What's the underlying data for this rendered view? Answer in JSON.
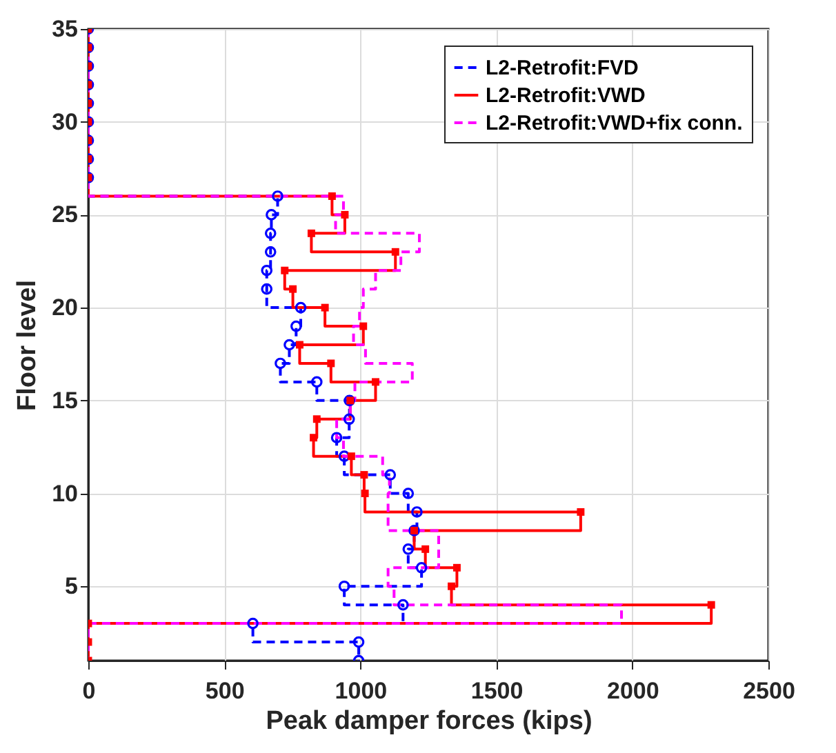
{
  "chart_data": {
    "type": "step",
    "orientation": "horizontal",
    "xlabel": "Peak damper forces (kips)",
    "ylabel": "Floor level",
    "x": [
      1,
      2,
      3,
      4,
      5,
      6,
      7,
      8,
      9,
      10,
      11,
      12,
      13,
      14,
      15,
      16,
      17,
      18,
      19,
      20,
      21,
      22,
      23,
      24,
      25,
      26,
      27,
      28,
      29,
      30,
      31,
      32,
      33,
      34,
      35
    ],
    "series": [
      {
        "name": "L2-Retrofit:FVD",
        "color": "#0000ff",
        "marker": "circle",
        "line_style": "dashed",
        "values": [
          994,
          994,
          605,
          1157,
          941,
          1225,
          1176,
          1198,
          1208,
          1176,
          1110,
          941,
          913,
          959,
          960,
          840,
          706,
          739,
          764,
          781,
          656,
          656,
          670,
          670,
          673,
          696,
          0,
          0,
          0,
          0,
          0,
          0,
          0,
          0,
          0
        ]
      },
      {
        "name": "L2-Retrofit:VWD",
        "color": "#ff0000",
        "marker": "square",
        "line_style": "solid",
        "values": [
          0,
          0,
          0,
          2290,
          1335,
          1355,
          1239,
          1198,
          1810,
          1017,
          1014,
          967,
          828,
          840,
          963,
          1056,
          892,
          777,
          1011,
          870,
          752,
          722,
          1129,
          820,
          943,
          896,
          0,
          0,
          0,
          0,
          0,
          0,
          0,
          0,
          0
        ]
      },
      {
        "name": "L2-Retrofit:VWD+fix conn.",
        "color": "#ff00ff",
        "marker": "none",
        "line_style": "dashed",
        "values": [
          0,
          0,
          0,
          1960,
          1124,
          1102,
          1288,
          1288,
          1102,
          1102,
          1107,
          1082,
          938,
          913,
          963,
          980,
          1191,
          1019,
          975,
          997,
          1011,
          1056,
          1149,
          1217,
          909,
          938,
          0,
          0,
          0,
          0,
          0,
          0,
          0,
          0,
          0
        ]
      }
    ],
    "xlim": [
      0,
      2500
    ],
    "xticks": [
      0,
      500,
      1000,
      1500,
      2000,
      2500
    ],
    "ylim": [
      1,
      35
    ],
    "yticks": [
      5,
      10,
      15,
      20,
      25,
      30,
      35
    ],
    "grid": true,
    "legend": "top right"
  }
}
